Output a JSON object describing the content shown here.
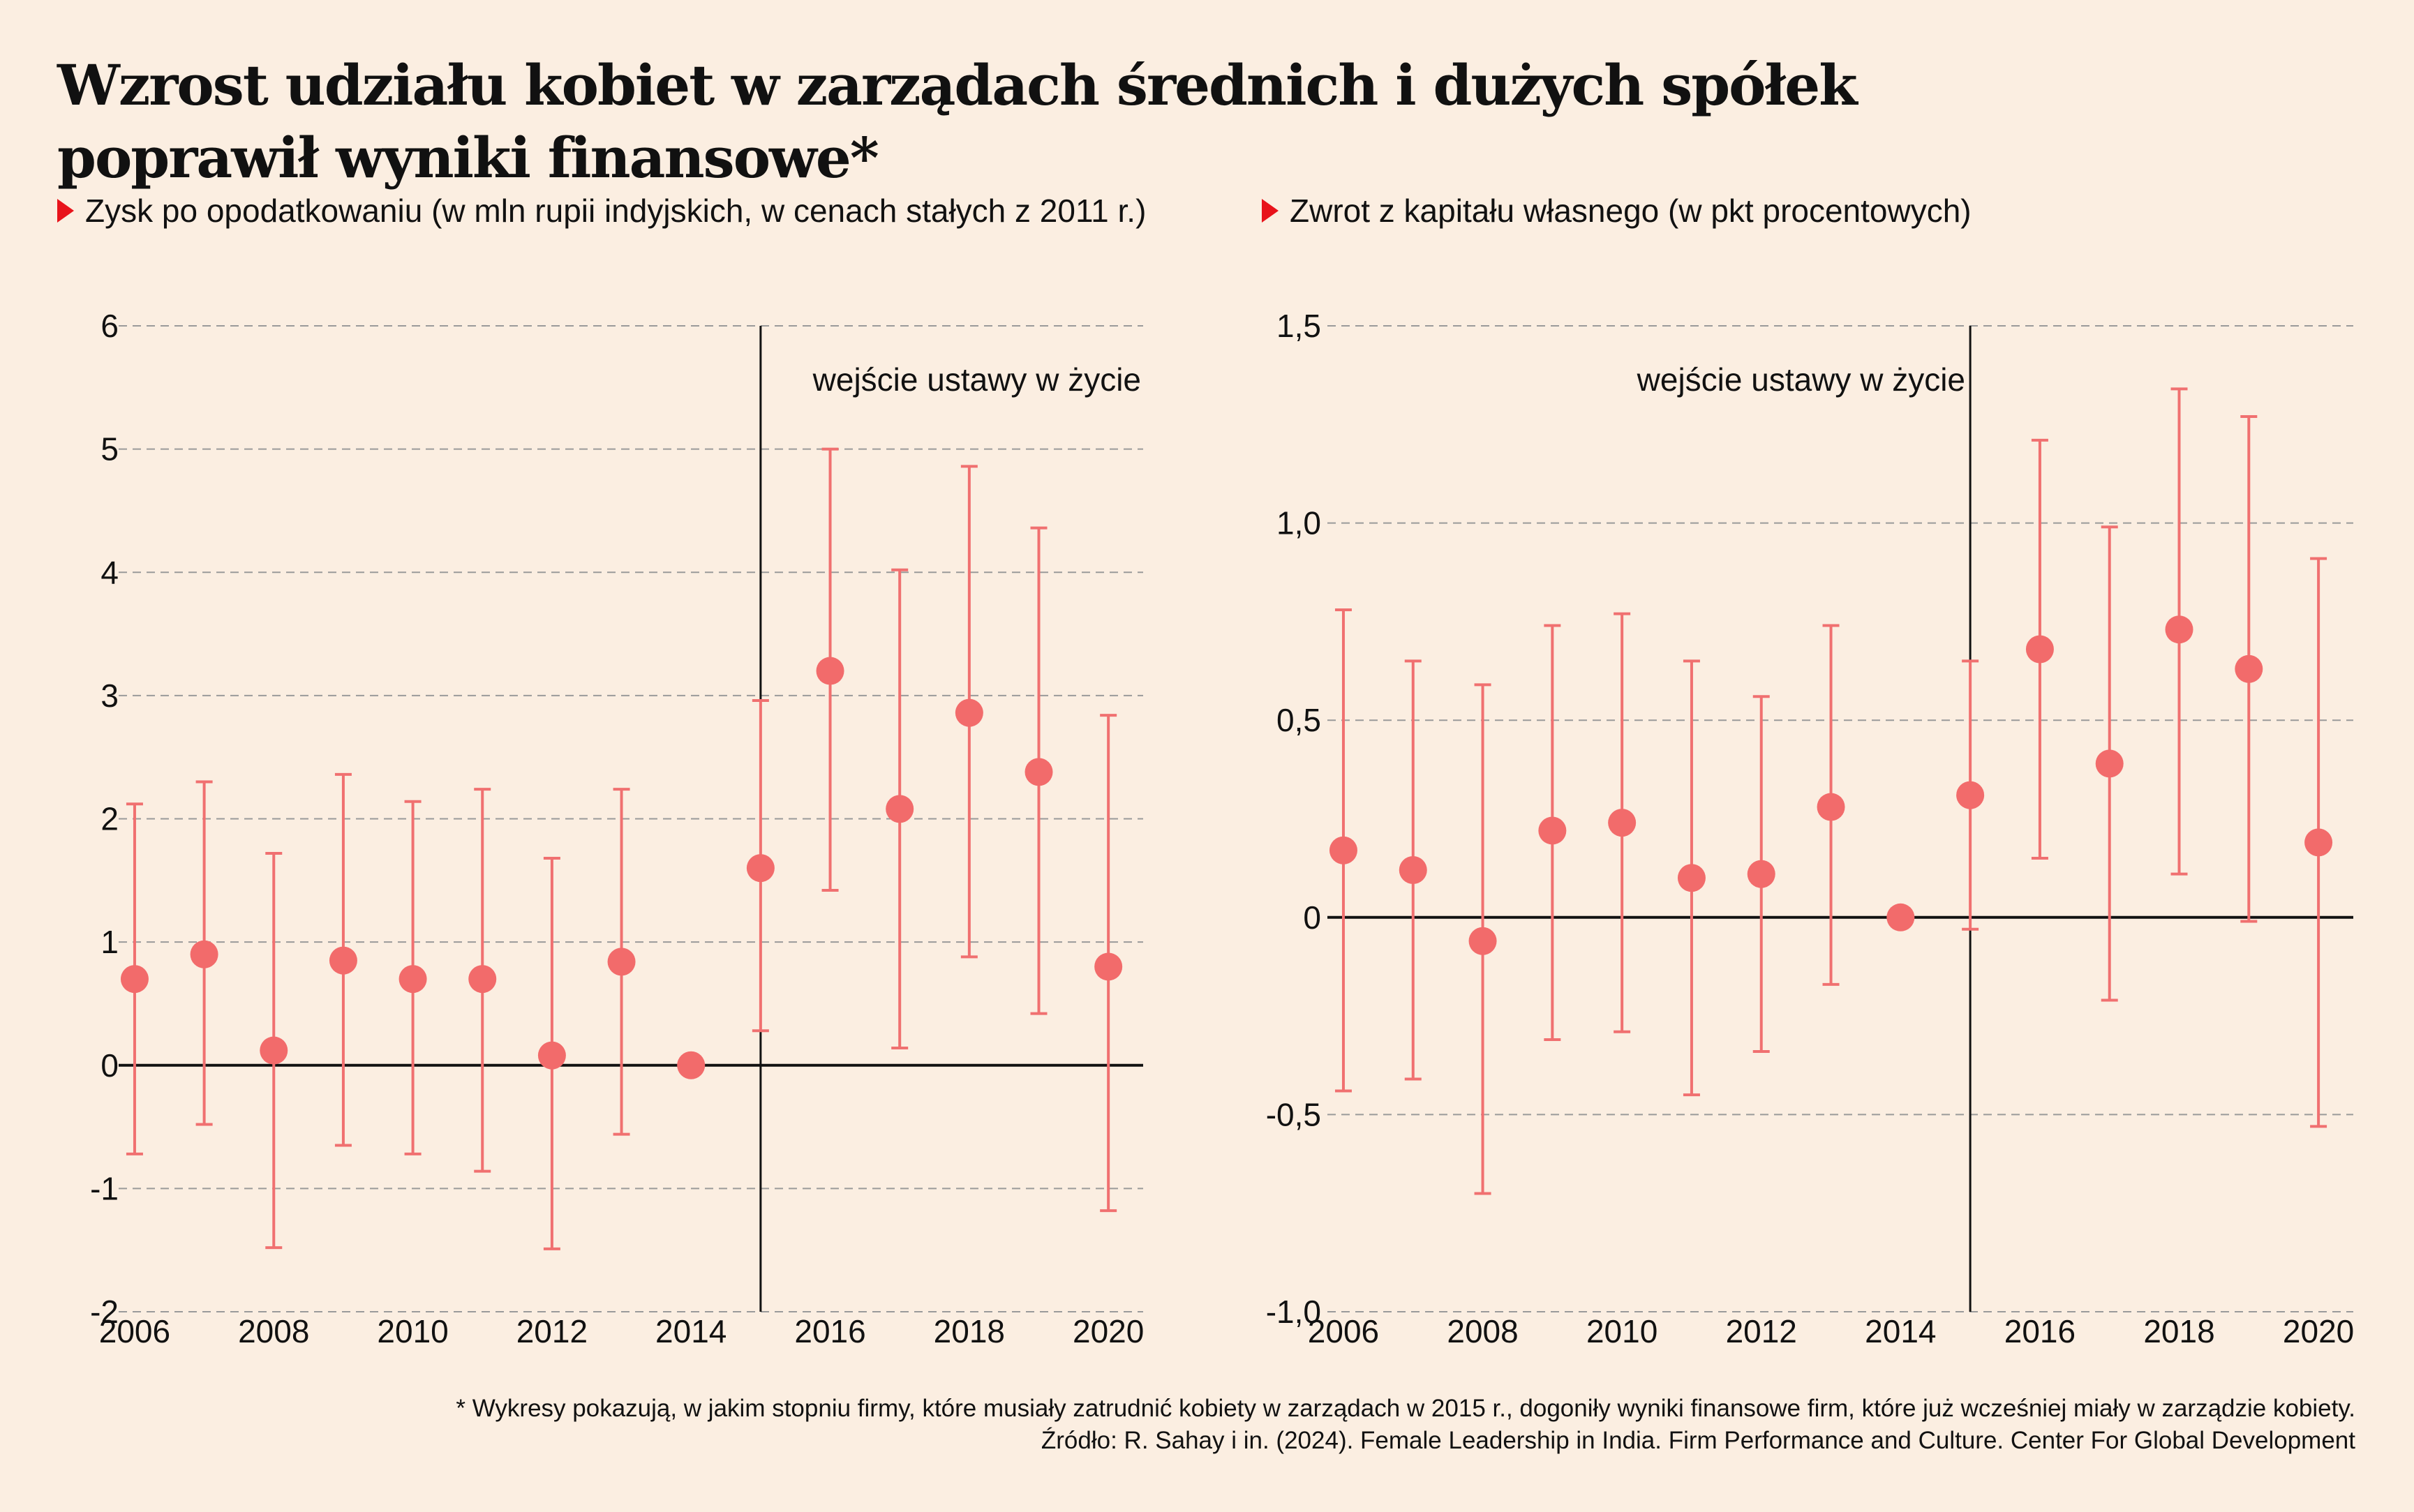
{
  "title": "Wzrost udziału kobiet w zarządach średnich i dużych spółek poprawił wyniki finansowe*",
  "footnote": "* Wykresy pokazują, w jakim stopniu firmy, które musiały zatrudnić kobiety w zarządach w 2015 r., dogoniły wyniki finansowe firm, które już wcześniej miały w zarządzie kobiety.",
  "source": "Źródło: R. Sahay i in. (2024). Female Leadership in India. Firm Performance and Culture. Center For Global Development",
  "colors": {
    "background": "#fbeee1",
    "marker": "#f26b6b",
    "errorbar": "#f07070",
    "legend_triangle": "#e8131b",
    "grid": "#9a9a9a",
    "axis": "#111111"
  },
  "chart_data": [
    {
      "type": "scatter",
      "title": "Zysk po opodatkowaniu (w mln rupii indyjskich, w cenach stałych z 2011 r.)",
      "x": [
        2006,
        2007,
        2008,
        2009,
        2010,
        2011,
        2012,
        2013,
        2014,
        2015,
        2016,
        2017,
        2018,
        2019,
        2020
      ],
      "y": [
        0.7,
        0.9,
        0.12,
        0.85,
        0.7,
        0.7,
        0.08,
        0.84,
        0.0,
        1.6,
        3.2,
        2.08,
        2.86,
        2.38,
        0.8
      ],
      "y_low": [
        -0.72,
        -0.48,
        -1.48,
        -0.65,
        -0.72,
        -0.86,
        -1.49,
        -0.56,
        null,
        0.28,
        1.42,
        0.14,
        0.88,
        0.42,
        -1.18
      ],
      "y_high": [
        2.12,
        2.3,
        1.72,
        2.36,
        2.14,
        2.24,
        1.68,
        2.24,
        null,
        2.96,
        5.0,
        4.02,
        4.86,
        4.36,
        2.84
      ],
      "xticks": [
        "2006",
        "2008",
        "2010",
        "2012",
        "2014",
        "2016",
        "2018",
        "2020"
      ],
      "yticks": [
        "-2",
        "-1",
        "0",
        "1",
        "2",
        "3",
        "4",
        "5",
        "6"
      ],
      "ylim": [
        -2,
        6
      ],
      "xlim": [
        2005.85,
        2020.5
      ],
      "grid": true,
      "vline_x": 2015,
      "annotation": "wejście ustawy w życie"
    },
    {
      "type": "scatter",
      "title": "Zwrot z kapitału własnego (w pkt procentowych)",
      "x": [
        2006,
        2007,
        2008,
        2009,
        2010,
        2011,
        2012,
        2013,
        2014,
        2015,
        2016,
        2017,
        2018,
        2019,
        2020
      ],
      "y": [
        0.17,
        0.12,
        -0.06,
        0.22,
        0.24,
        0.1,
        0.11,
        0.28,
        0.0,
        0.31,
        0.68,
        0.39,
        0.73,
        0.63,
        0.19
      ],
      "y_low": [
        -0.44,
        -0.41,
        -0.7,
        -0.31,
        -0.29,
        -0.45,
        -0.34,
        -0.17,
        null,
        -0.03,
        0.15,
        -0.21,
        0.11,
        -0.01,
        -0.53
      ],
      "y_high": [
        0.78,
        0.65,
        0.59,
        0.74,
        0.77,
        0.65,
        0.56,
        0.74,
        null,
        0.65,
        1.21,
        0.99,
        1.34,
        1.27,
        0.91
      ],
      "xticks": [
        "2006",
        "2008",
        "2010",
        "2012",
        "2014",
        "2016",
        "2018",
        "2020"
      ],
      "yticks": [
        "-1,0",
        "-0,5",
        "0",
        "0,5",
        "1,0",
        "1,5"
      ],
      "ylim": [
        -1.0,
        1.5
      ],
      "xlim": [
        2005.85,
        2020.5
      ],
      "grid": true,
      "vline_x": 2015,
      "annotation": "wejście ustawy w życie"
    }
  ]
}
